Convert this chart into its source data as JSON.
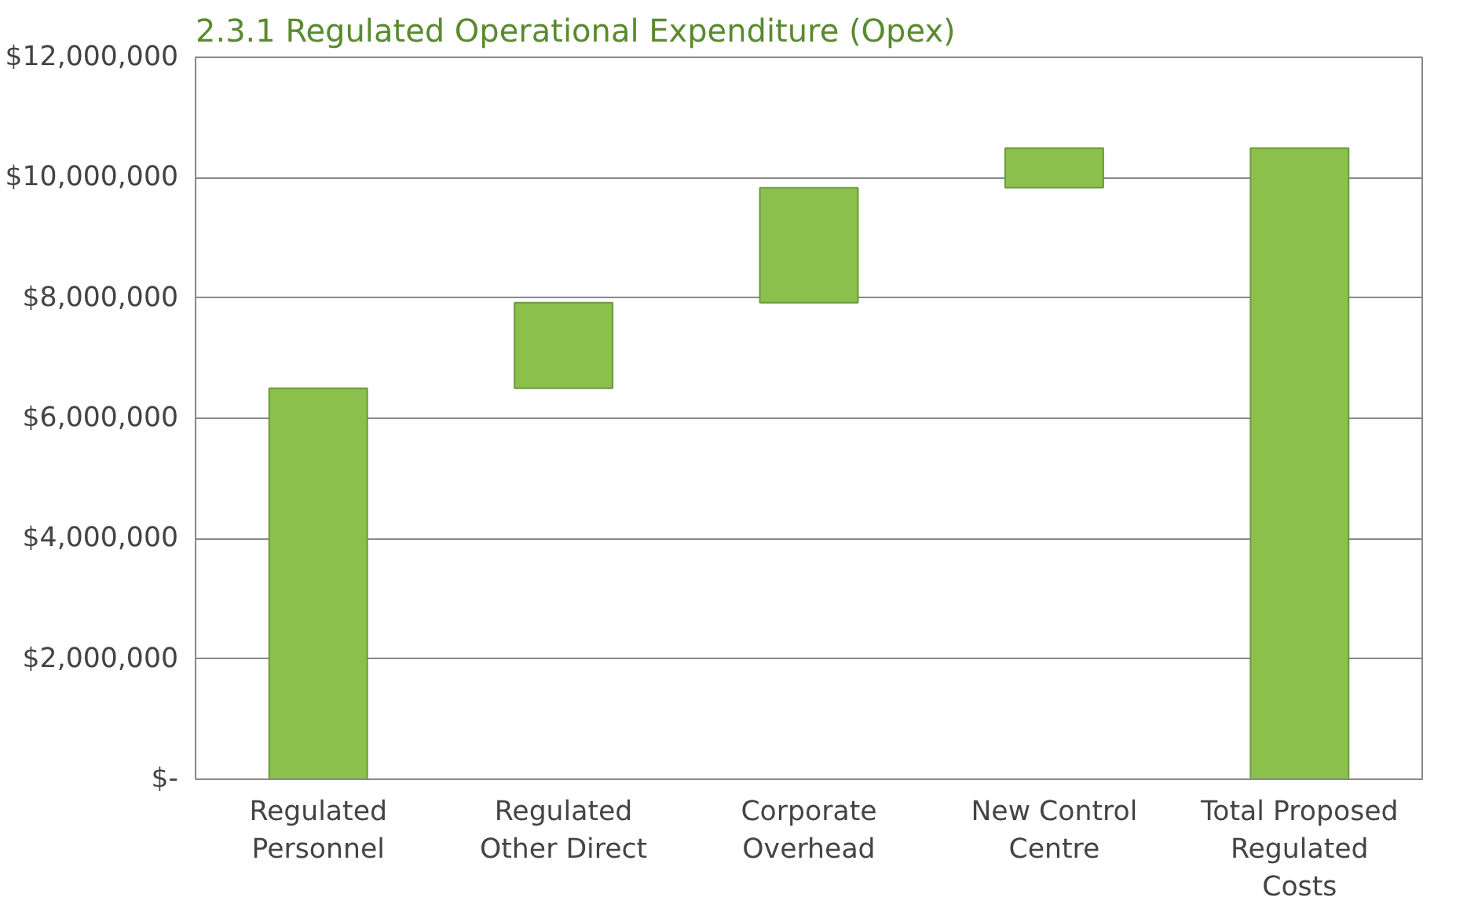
{
  "chart_data": {
    "type": "bar",
    "title": "2.3.1 Regulated Operational Expenditure (Opex)",
    "categories": [
      "Regulated Personnel",
      "Regulated Other Direct",
      "Corporate Overhead",
      "New Control Centre",
      "Total Proposed Regulated Costs"
    ],
    "values": [
      6500000,
      1420000,
      1910000,
      660000,
      10490000
    ],
    "base": [
      0,
      6500000,
      7920000,
      9830000,
      0
    ],
    "color": "#8cc04c",
    "ylim": [
      0,
      12000000
    ],
    "yticks": [
      {
        "value": 0,
        "label": "$-"
      },
      {
        "value": 2000000,
        "label": "$2,000,000"
      },
      {
        "value": 4000000,
        "label": "$4,000,000"
      },
      {
        "value": 6000000,
        "label": "$6,000,000"
      },
      {
        "value": 8000000,
        "label": "$8,000,000"
      },
      {
        "value": 10000000,
        "label": "$10,000,000"
      },
      {
        "value": 12000000,
        "label": "$12,000,000"
      }
    ],
    "grid": "y"
  }
}
